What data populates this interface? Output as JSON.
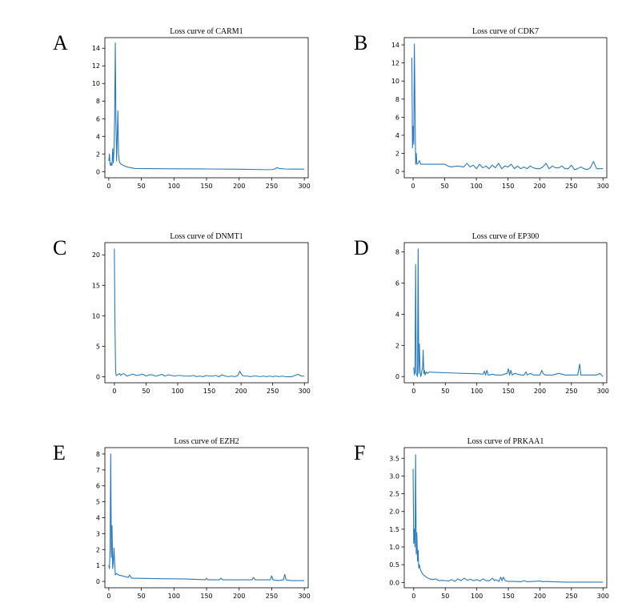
{
  "figure": {
    "line_color": "#2a79b8"
  },
  "chart_data": [
    {
      "letter": "A",
      "type": "line",
      "title": "Loss curve of CARM1",
      "xlim": [
        -6,
        306
      ],
      "ylim": [
        -0.7,
        15.2
      ],
      "xticks": [
        0,
        50,
        100,
        150,
        200,
        250,
        300
      ],
      "yticks": [
        0,
        2,
        4,
        6,
        8,
        10,
        12,
        14
      ],
      "series": [
        {
          "x": [
            0,
            1,
            2,
            3,
            4,
            5,
            6,
            7,
            8,
            9,
            10,
            11,
            12,
            13,
            14,
            15,
            16,
            17,
            18,
            20,
            25,
            30,
            40,
            60,
            100,
            150,
            200,
            240,
            245,
            250,
            255,
            258,
            262,
            270,
            280,
            290,
            300
          ],
          "y": [
            1.2,
            2.0,
            0.8,
            0.7,
            1.0,
            0.7,
            2.6,
            1.0,
            2.6,
            6.0,
            14.6,
            5.5,
            1.2,
            4.0,
            6.9,
            2.0,
            1.2,
            1.0,
            0.9,
            0.8,
            0.6,
            0.5,
            0.35,
            0.34,
            0.32,
            0.3,
            0.27,
            0.22,
            0.22,
            0.23,
            0.3,
            0.45,
            0.35,
            0.3,
            0.28,
            0.28,
            0.28
          ]
        }
      ]
    },
    {
      "letter": "B",
      "type": "line",
      "title": "Loss curve of CDK7",
      "xlim": [
        -14,
        306
      ],
      "ylim": [
        -0.7,
        14.8
      ],
      "xticks": [
        0,
        50,
        100,
        150,
        200,
        250,
        300
      ],
      "yticks": [
        0,
        2,
        4,
        6,
        8,
        10,
        12,
        14
      ],
      "series": [
        {
          "x": [
            -2,
            -1,
            0,
            1,
            2,
            3,
            4,
            5,
            6,
            8,
            10,
            12,
            15,
            20,
            30,
            40,
            50,
            55,
            60,
            70,
            80,
            85,
            90,
            95,
            100,
            105,
            110,
            115,
            120,
            125,
            130,
            135,
            140,
            145,
            150,
            155,
            160,
            165,
            170,
            175,
            180,
            185,
            190,
            195,
            200,
            205,
            210,
            215,
            220,
            225,
            230,
            235,
            240,
            245,
            250,
            255,
            260,
            265,
            270,
            275,
            280,
            285,
            290,
            295,
            300
          ],
          "y": [
            12.6,
            2.6,
            5.0,
            3.0,
            14.1,
            7.0,
            0.8,
            2.0,
            0.8,
            0.9,
            1.2,
            0.8,
            0.8,
            0.8,
            0.8,
            0.8,
            0.8,
            0.6,
            0.5,
            0.6,
            0.5,
            0.9,
            0.5,
            0.7,
            0.3,
            0.8,
            0.4,
            0.6,
            0.3,
            0.7,
            0.4,
            0.9,
            0.3,
            0.6,
            0.5,
            0.8,
            0.3,
            0.6,
            0.3,
            0.5,
            0.3,
            0.6,
            0.4,
            0.3,
            0.3,
            0.5,
            0.9,
            0.3,
            0.6,
            0.4,
            0.4,
            0.6,
            0.3,
            0.3,
            0.7,
            0.2,
            0.3,
            0.5,
            0.3,
            0.2,
            0.4,
            1.1,
            0.3,
            0.3,
            0.3
          ]
        }
      ]
    },
    {
      "letter": "C",
      "type": "line",
      "title": "Loss curve of DNMT1",
      "xlim": [
        -15,
        306
      ],
      "ylim": [
        -1.0,
        22.0
      ],
      "xticks": [
        0,
        50,
        100,
        150,
        200,
        250,
        300
      ],
      "yticks": [
        0,
        5,
        10,
        15,
        20
      ],
      "series": [
        {
          "x": [
            0,
            1,
            2,
            3,
            5,
            8,
            10,
            12,
            15,
            20,
            25,
            30,
            35,
            40,
            45,
            50,
            55,
            60,
            65,
            70,
            75,
            80,
            85,
            90,
            95,
            100,
            105,
            110,
            115,
            120,
            125,
            130,
            135,
            140,
            145,
            150,
            155,
            160,
            165,
            170,
            175,
            180,
            185,
            190,
            195,
            198,
            200,
            202,
            205,
            210,
            215,
            220,
            225,
            230,
            235,
            240,
            245,
            250,
            255,
            260,
            265,
            270,
            275,
            280,
            285,
            290,
            295,
            300
          ],
          "y": [
            21.0,
            8.0,
            0.8,
            0.2,
            0.3,
            0.5,
            0.2,
            0.4,
            0.5,
            0.1,
            0.3,
            0.4,
            0.2,
            0.3,
            0.4,
            0.1,
            0.3,
            0.3,
            0.1,
            0.2,
            0.4,
            0.1,
            0.3,
            0.2,
            0.1,
            0.2,
            0.2,
            0.1,
            0.1,
            0.1,
            0.2,
            0.0,
            0.1,
            0.0,
            0.2,
            0.1,
            0.1,
            0.2,
            0.0,
            0.3,
            0.1,
            0.0,
            0.1,
            0.0,
            0.2,
            0.9,
            0.5,
            0.2,
            0.1,
            0.1,
            0.0,
            0.1,
            0.1,
            0.0,
            0.1,
            0.0,
            0.1,
            0.0,
            0.1,
            0.0,
            0.1,
            0.0,
            0.0,
            0.0,
            0.2,
            0.4,
            0.1,
            0.1
          ]
        }
      ]
    },
    {
      "letter": "D",
      "type": "line",
      "title": "Loss curve of EP300",
      "xlim": [
        -15,
        306
      ],
      "ylim": [
        -0.4,
        8.6
      ],
      "xticks": [
        0,
        50,
        100,
        150,
        200,
        250,
        300
      ],
      "yticks": [
        0,
        2,
        4,
        6,
        8
      ],
      "series": [
        {
          "x": [
            0,
            1,
            2,
            3,
            4,
            5,
            6,
            7,
            8,
            9,
            10,
            11,
            12,
            13,
            14,
            15,
            16,
            17,
            18,
            20,
            22,
            25,
            30,
            40,
            60,
            80,
            100,
            110,
            112,
            114,
            116,
            118,
            120,
            125,
            130,
            140,
            148,
            150,
            152,
            154,
            156,
            160,
            170,
            175,
            178,
            180,
            185,
            190,
            200,
            203,
            205,
            208,
            210,
            220,
            230,
            240,
            250,
            260,
            263,
            265,
            267,
            270,
            280,
            290,
            295,
            300
          ],
          "y": [
            0.6,
            0.1,
            0.3,
            7.2,
            0.2,
            0.1,
            0.0,
            8.2,
            0.2,
            2.1,
            0.5,
            0.0,
            0.1,
            0.4,
            0.5,
            1.7,
            0.2,
            0.4,
            0.1,
            0.3,
            0.2,
            0.3,
            0.28,
            0.26,
            0.23,
            0.2,
            0.18,
            0.15,
            0.35,
            0.1,
            0.4,
            0.1,
            0.1,
            0.15,
            0.1,
            0.1,
            0.2,
            0.5,
            0.1,
            0.4,
            0.1,
            0.2,
            0.1,
            0.1,
            0.3,
            0.1,
            0.2,
            0.1,
            0.1,
            0.4,
            0.2,
            0.1,
            0.1,
            0.1,
            0.2,
            0.1,
            0.1,
            0.1,
            0.8,
            0.1,
            0.1,
            0.1,
            0.1,
            0.1,
            0.2,
            0.0
          ]
        }
      ]
    },
    {
      "letter": "E",
      "type": "line",
      "title": "Loss curve of EZH2",
      "xlim": [
        -6,
        306
      ],
      "ylim": [
        -0.4,
        8.4
      ],
      "xticks": [
        0,
        50,
        100,
        150,
        200,
        250,
        300
      ],
      "yticks": [
        0,
        1,
        2,
        3,
        4,
        5,
        6,
        7,
        8
      ],
      "series": [
        {
          "x": [
            0,
            1,
            2,
            3,
            4,
            5,
            6,
            7,
            8,
            10,
            12,
            15,
            20,
            25,
            30,
            32,
            35,
            40,
            60,
            80,
            100,
            120,
            140,
            148,
            150,
            152,
            160,
            170,
            172,
            175,
            180,
            190,
            200,
            210,
            220,
            222,
            225,
            230,
            240,
            248,
            250,
            252,
            260,
            268,
            270,
            272,
            280,
            290,
            300
          ],
          "y": [
            1.0,
            0.8,
            2.0,
            8.0,
            1.5,
            3.5,
            0.8,
            1.2,
            2.1,
            0.4,
            0.5,
            0.4,
            0.35,
            0.3,
            0.25,
            0.4,
            0.2,
            0.2,
            0.18,
            0.17,
            0.16,
            0.15,
            0.12,
            0.1,
            0.2,
            0.1,
            0.1,
            0.1,
            0.2,
            0.1,
            0.1,
            0.1,
            0.1,
            0.1,
            0.1,
            0.25,
            0.1,
            0.1,
            0.1,
            0.1,
            0.35,
            0.1,
            0.05,
            0.1,
            0.45,
            0.1,
            0.05,
            0.05,
            0.05
          ]
        }
      ]
    },
    {
      "letter": "F",
      "type": "line",
      "title": "Loss curve of PRKAA1",
      "xlim": [
        -15,
        306
      ],
      "ylim": [
        -0.15,
        3.8
      ],
      "xticks": [
        0,
        50,
        100,
        150,
        200,
        250,
        300
      ],
      "yticks": [
        0,
        0.5,
        1,
        1.5,
        2,
        2.5,
        3,
        3.5
      ],
      "ytick_labels": [
        "0.0",
        "0.5",
        "1.0",
        "1.5",
        "2.0",
        "2.5",
        "3.0",
        "3.5"
      ],
      "series": [
        {
          "x": [
            -1,
            0,
            1,
            2,
            3,
            4,
            5,
            6,
            7,
            8,
            9,
            10,
            12,
            14,
            16,
            18,
            20,
            25,
            30,
            35,
            40,
            45,
            50,
            55,
            60,
            65,
            70,
            75,
            80,
            85,
            90,
            95,
            100,
            105,
            110,
            115,
            120,
            125,
            128,
            130,
            135,
            138,
            140,
            142,
            145,
            150,
            160,
            170,
            175,
            180,
            190,
            200,
            205,
            210,
            220,
            240,
            260,
            280,
            300
          ],
          "y": [
            3.2,
            1.1,
            1.5,
            1.0,
            3.6,
            0.8,
            1.4,
            0.6,
            0.9,
            0.4,
            0.5,
            0.4,
            0.3,
            0.25,
            0.2,
            0.18,
            0.15,
            0.1,
            0.08,
            0.1,
            0.05,
            0.06,
            0.05,
            0.04,
            0.08,
            0.03,
            0.1,
            0.05,
            0.12,
            0.06,
            0.09,
            0.05,
            0.08,
            0.04,
            0.1,
            0.05,
            0.05,
            0.12,
            0.05,
            0.08,
            0.03,
            0.15,
            0.05,
            0.15,
            0.05,
            0.03,
            0.03,
            0.02,
            0.05,
            0.02,
            0.03,
            0.04,
            0.02,
            0.03,
            0.02,
            0.01,
            0.01,
            0.01,
            0.01
          ]
        }
      ]
    }
  ]
}
